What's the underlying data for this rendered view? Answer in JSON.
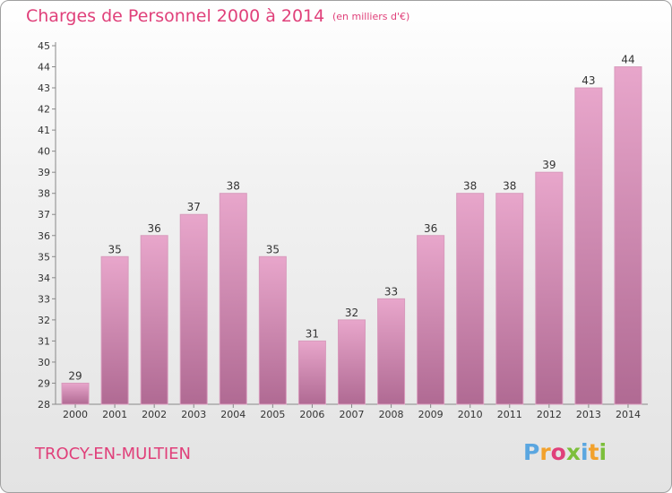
{
  "chart_data": {
    "type": "bar",
    "title": "Charges de Personnel 2000 à 2014",
    "subtitle": "(en milliers d'€)",
    "categories": [
      "2000",
      "2001",
      "2002",
      "2003",
      "2004",
      "2005",
      "2006",
      "2007",
      "2008",
      "2009",
      "2010",
      "2011",
      "2012",
      "2013",
      "2014"
    ],
    "values": [
      29,
      35,
      36,
      37,
      38,
      35,
      31,
      32,
      33,
      36,
      38,
      38,
      39,
      43,
      44
    ],
    "ylim": [
      28,
      45
    ],
    "yticks": [
      28,
      29,
      30,
      31,
      32,
      33,
      34,
      35,
      36,
      37,
      38,
      39,
      40,
      41,
      42,
      43,
      44,
      45
    ],
    "grid": false,
    "bar_color": "#c97ba6"
  },
  "commune": "TROCY-EN-MULTIEN",
  "brand": {
    "letters": [
      "P",
      "r",
      "o",
      "x",
      "i",
      "t",
      "i"
    ],
    "colors": [
      "#5aa6e0",
      "#f2a12c",
      "#e0407a",
      "#7cbf3b",
      "#5aa6e0",
      "#f2a12c",
      "#7cbf3b"
    ]
  }
}
